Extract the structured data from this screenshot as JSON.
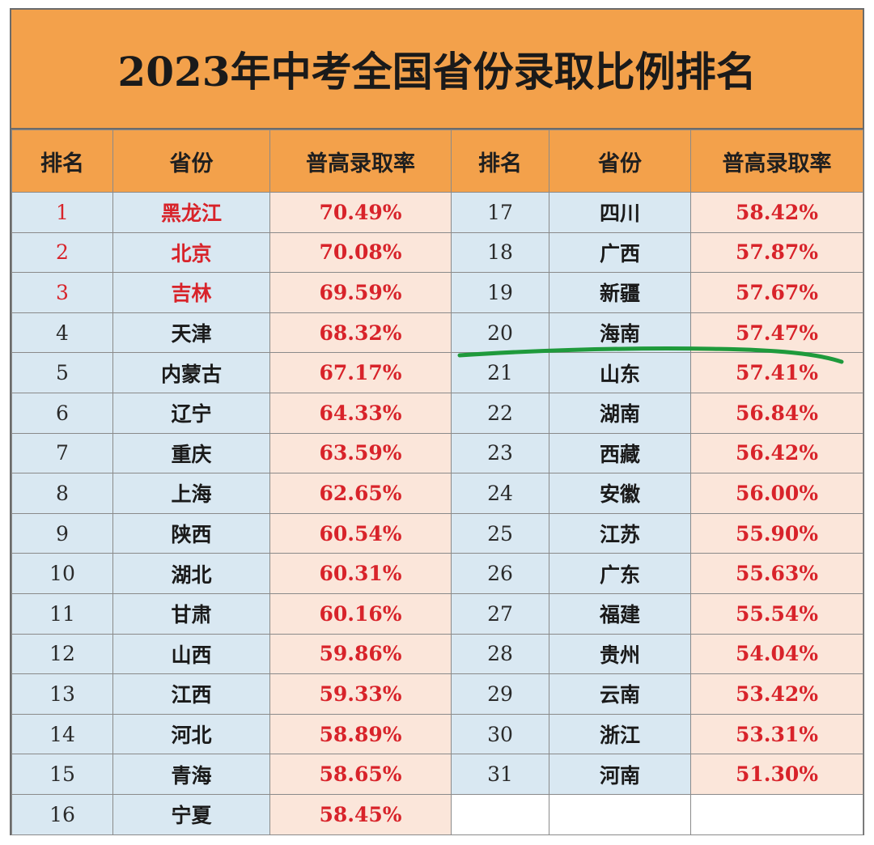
{
  "title": "2023年中考全国省份录取比例排名",
  "headers": [
    "排名",
    "省份",
    "普高录取率"
  ],
  "highlight_color": "#d8232a",
  "top_ranks": [
    1,
    2,
    3
  ],
  "rows": [
    {
      "rank": "1",
      "province": "黑龙江",
      "rate": "70.49%"
    },
    {
      "rank": "2",
      "province": "北京",
      "rate": "70.08%"
    },
    {
      "rank": "3",
      "province": "吉林",
      "rate": "69.59%"
    },
    {
      "rank": "4",
      "province": "天津",
      "rate": "68.32%"
    },
    {
      "rank": "5",
      "province": "内蒙古",
      "rate": "67.17%"
    },
    {
      "rank": "6",
      "province": "辽宁",
      "rate": "64.33%"
    },
    {
      "rank": "7",
      "province": "重庆",
      "rate": "63.59%"
    },
    {
      "rank": "8",
      "province": "上海",
      "rate": "62.65%"
    },
    {
      "rank": "9",
      "province": "陕西",
      "rate": "60.54%"
    },
    {
      "rank": "10",
      "province": "湖北",
      "rate": "60.31%"
    },
    {
      "rank": "11",
      "province": "甘肃",
      "rate": "60.16%"
    },
    {
      "rank": "12",
      "province": "山西",
      "rate": "59.86%"
    },
    {
      "rank": "13",
      "province": "江西",
      "rate": "59.33%"
    },
    {
      "rank": "14",
      "province": "河北",
      "rate": "58.89%"
    },
    {
      "rank": "15",
      "province": "青海",
      "rate": "58.65%"
    },
    {
      "rank": "16",
      "province": "宁夏",
      "rate": "58.45%"
    },
    {
      "rank": "17",
      "province": "四川",
      "rate": "58.42%"
    },
    {
      "rank": "18",
      "province": "广西",
      "rate": "57.87%"
    },
    {
      "rank": "19",
      "province": "新疆",
      "rate": "57.67%"
    },
    {
      "rank": "20",
      "province": "海南",
      "rate": "57.47%"
    },
    {
      "rank": "21",
      "province": "山东",
      "rate": "57.41%"
    },
    {
      "rank": "22",
      "province": "湖南",
      "rate": "56.84%"
    },
    {
      "rank": "23",
      "province": "西藏",
      "rate": "56.42%"
    },
    {
      "rank": "24",
      "province": "安徽",
      "rate": "56.00%"
    },
    {
      "rank": "25",
      "province": "江苏",
      "rate": "55.90%"
    },
    {
      "rank": "26",
      "province": "广东",
      "rate": "55.63%"
    },
    {
      "rank": "27",
      "province": "福建",
      "rate": "55.54%"
    },
    {
      "rank": "28",
      "province": "贵州",
      "rate": "54.04%"
    },
    {
      "rank": "29",
      "province": "云南",
      "rate": "53.42%"
    },
    {
      "rank": "30",
      "province": "浙江",
      "rate": "53.31%"
    },
    {
      "rank": "31",
      "province": "河南",
      "rate": "51.30%"
    }
  ],
  "annotation": {
    "type": "hand-drawn underline",
    "after_rank": "20",
    "color": "#1f9a3c"
  }
}
